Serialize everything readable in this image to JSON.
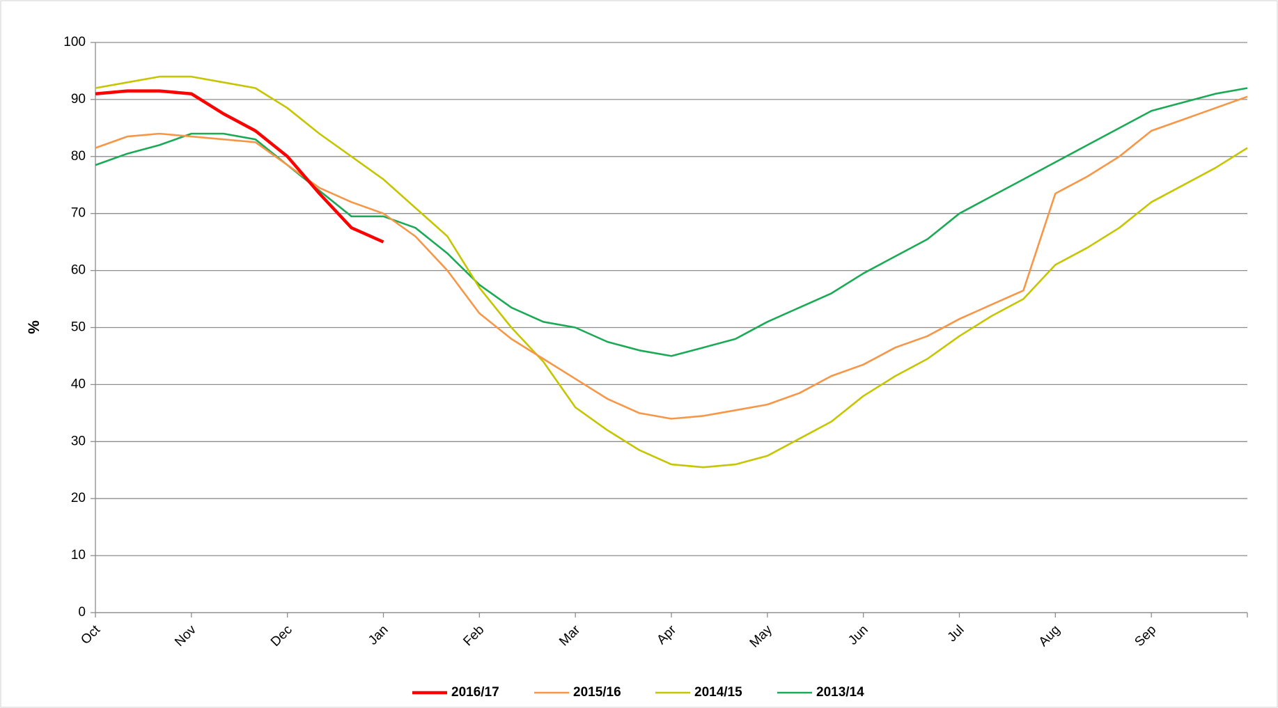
{
  "chart_data": {
    "type": "line",
    "ylabel": "%",
    "categories": [
      "Oct",
      null,
      null,
      "Nov",
      null,
      null,
      "Dec",
      null,
      null,
      "Jan",
      null,
      null,
      "Feb",
      null,
      null,
      "Mar",
      null,
      null,
      "Apr",
      null,
      null,
      "May",
      null,
      null,
      "Jun",
      null,
      null,
      "Jul",
      null,
      null,
      "Aug",
      null,
      null,
      "Sep",
      null,
      null,
      null
    ],
    "series": [
      {
        "name": "2016/17",
        "color": "#ff0000",
        "values": [
          91,
          91.5,
          91.5,
          91,
          87.5,
          84.5,
          80,
          73.5,
          67.5,
          65,
          null,
          null,
          null,
          null,
          null,
          null,
          null,
          null,
          null,
          null,
          null,
          null,
          null,
          null,
          null,
          null,
          null,
          null,
          null,
          null,
          null,
          null,
          null,
          null,
          null,
          null,
          null
        ]
      },
      {
        "name": "2015/16",
        "color": "#f79646",
        "values": [
          81.5,
          83.5,
          84,
          83.5,
          83,
          82.5,
          78.5,
          74.5,
          72,
          70,
          66,
          60,
          52.5,
          48,
          44.5,
          41,
          37.5,
          35,
          34,
          34.5,
          35.5,
          36.5,
          38.5,
          41.5,
          43.5,
          46.5,
          48.5,
          51.5,
          54,
          56.5,
          73.5,
          76.5,
          80,
          84.5,
          86.5,
          88.5,
          90.5
        ]
      },
      {
        "name": "2014/15",
        "color": "#c5c500",
        "values": [
          92,
          93,
          94,
          94,
          93,
          92,
          88.5,
          84,
          80,
          76,
          71,
          66,
          57,
          50,
          44,
          36,
          32,
          28.5,
          26,
          25.5,
          26,
          27.5,
          30.5,
          33.5,
          38,
          41.5,
          44.5,
          48.5,
          52,
          55,
          61,
          64,
          67.5,
          72,
          75,
          78,
          81.5
        ]
      },
      {
        "name": "2013/14",
        "color": "#1aaa55",
        "values": [
          78.5,
          80.5,
          82,
          84,
          84,
          83,
          78.5,
          74,
          69.5,
          69.5,
          67.5,
          63,
          57.5,
          53.5,
          51,
          50,
          47.5,
          46,
          45,
          46.5,
          48,
          51,
          53.5,
          56,
          59.5,
          62.5,
          65.5,
          70,
          73,
          76,
          79,
          82,
          85,
          88,
          89.5,
          91,
          92
        ]
      }
    ],
    "ylim": [
      0,
      100
    ],
    "yticks": [
      0,
      10,
      20,
      30,
      40,
      50,
      60,
      70,
      80,
      90,
      100
    ],
    "grid": true,
    "legend": "bottom"
  }
}
